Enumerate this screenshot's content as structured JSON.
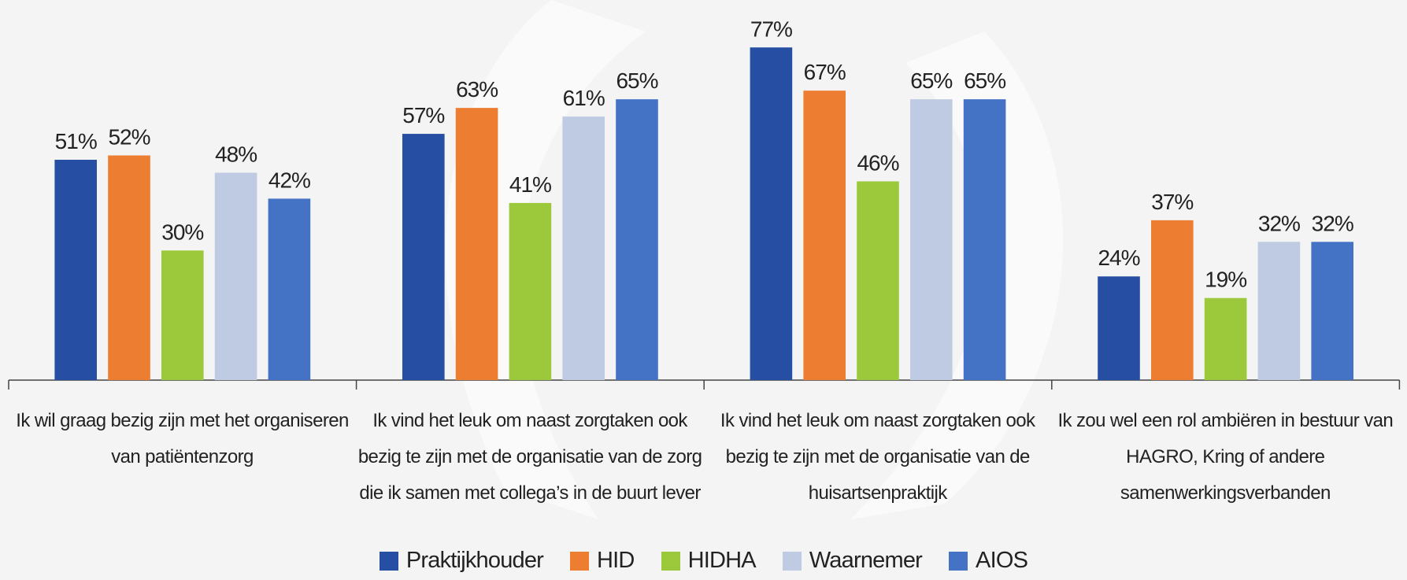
{
  "chart_data": {
    "type": "bar",
    "categories": [
      "Ik wil graag bezig zijn met het organiseren van patiëntenzorg",
      "Ik vind het leuk om naast zorgtaken ook bezig te zijn met de organisatie van de zorg die ik samen met collega’s in de buurt lever",
      "Ik vind het leuk om naast zorgtaken ook bezig te zijn met de organisatie van de huisartsenpraktijk",
      "Ik zou wel een rol ambiëren in bestuur van HAGRO, Kring of andere samenwerkingsverbanden"
    ],
    "series": [
      {
        "name": "Praktijkhouder",
        "color": "#264fa3",
        "values": [
          51,
          57,
          77,
          24
        ],
        "value_labels": [
          "51%",
          "57%",
          "77%",
          "24%"
        ]
      },
      {
        "name": "HID",
        "color": "#ed7d31",
        "values": [
          52,
          63,
          67,
          37
        ],
        "value_labels": [
          "52%",
          "63%",
          "67%",
          "37%"
        ]
      },
      {
        "name": "HIDHA",
        "color": "#9bc93b",
        "values": [
          30,
          41,
          46,
          19
        ],
        "value_labels": [
          "30%",
          "41%",
          "46%",
          "19%"
        ]
      },
      {
        "name": "Waarnemer",
        "color": "#bfcae3",
        "values": [
          48,
          61,
          65,
          32
        ],
        "value_labels": [
          "48%",
          "61%",
          "65%",
          "32%"
        ]
      },
      {
        "name": "AIOS",
        "color": "#4472c4",
        "values": [
          42,
          65,
          65,
          32
        ],
        "value_labels": [
          "42%",
          "65%",
          "65%",
          "32%"
        ]
      }
    ],
    "legend": "bottom"
  }
}
